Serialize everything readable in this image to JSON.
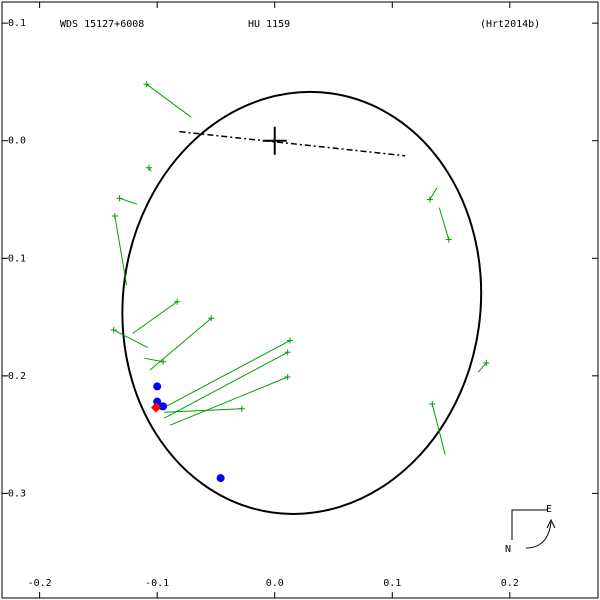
{
  "chart_data": {
    "type": "orbit",
    "title": "WDS 15127+6008",
    "name": "HU 1159",
    "reference": "(Hrt2014b)",
    "xlim": [
      -0.232,
      0.275
    ],
    "ylim": [
      -0.389,
      0.118
    ],
    "xticks": [
      -0.2,
      -0.1,
      {
        "value": 0,
        "label": "0.0"
      },
      0.1,
      0.2
    ],
    "yticks": [
      0.1,
      {
        "value": 0,
        "label": "0.0"
      },
      -0.1,
      -0.2,
      -0.3
    ],
    "orbit": {
      "center": [
        0.023,
        -0.138
      ],
      "semi_axes": [
        0.152,
        0.18
      ],
      "angle": 8,
      "color": "#000000"
    },
    "line_of_nodes": [
      [
        -0.081,
        0.0077
      ],
      [
        0.111,
        -0.0128
      ]
    ],
    "primary": [
      0,
      0
    ],
    "observation_color": "#00a000",
    "observations": [
      {
        "obs": [
          -0.109,
          0.048
        ],
        "fit": [
          -0.071,
          0.02
        ]
      },
      {
        "obs": [
          -0.107,
          -0.023
        ],
        "fit": [
          -0.105,
          -0.026
        ]
      },
      {
        "obs": [
          -0.132,
          -0.049
        ],
        "fit": [
          -0.117,
          -0.054
        ]
      },
      {
        "obs": [
          -0.136,
          -0.064
        ],
        "fit": [
          -0.126,
          -0.123
        ]
      },
      {
        "obs": [
          -0.083,
          -0.137
        ],
        "fit": [
          -0.121,
          -0.164
        ]
      },
      {
        "obs": [
          -0.137,
          -0.161
        ],
        "fit": [
          -0.108,
          -0.176
        ]
      },
      {
        "obs": [
          -0.054,
          -0.151
        ],
        "fit": [
          -0.106,
          -0.195
        ]
      },
      {
        "obs": [
          -0.095,
          -0.188
        ],
        "fit": [
          -0.111,
          -0.185
        ]
      },
      {
        "obs": [
          0.013,
          -0.17
        ],
        "fit": [
          -0.098,
          -0.229
        ]
      },
      {
        "obs": [
          0.011,
          -0.18
        ],
        "fit": [
          -0.094,
          -0.236
        ]
      },
      {
        "obs": [
          0.011,
          -0.201
        ],
        "fit": [
          -0.089,
          -0.242
        ]
      },
      {
        "obs": [
          -0.028,
          -0.228
        ],
        "fit": [
          -0.094,
          -0.231
        ]
      },
      {
        "obs": [
          0.132,
          -0.05
        ],
        "fit": [
          0.138,
          -0.04
        ]
      },
      {
        "obs": [
          0.148,
          -0.084
        ],
        "fit": [
          0.14,
          -0.057
        ]
      },
      {
        "obs": [
          0.18,
          -0.189
        ],
        "fit": [
          0.173,
          -0.197
        ]
      },
      {
        "obs": [
          0.134,
          -0.224
        ],
        "fit": [
          0.145,
          -0.267
        ]
      }
    ],
    "blue_points": {
      "color": "#0000ff",
      "x": [
        -0.1,
        -0.1,
        -0.095,
        -0.046
      ],
      "y": [
        -0.209,
        -0.222,
        -0.226,
        -0.287
      ]
    },
    "red_point": {
      "color": "#ff0000",
      "x": -0.101,
      "y": -0.227
    },
    "compass": {
      "east": "E",
      "north": "N"
    }
  }
}
